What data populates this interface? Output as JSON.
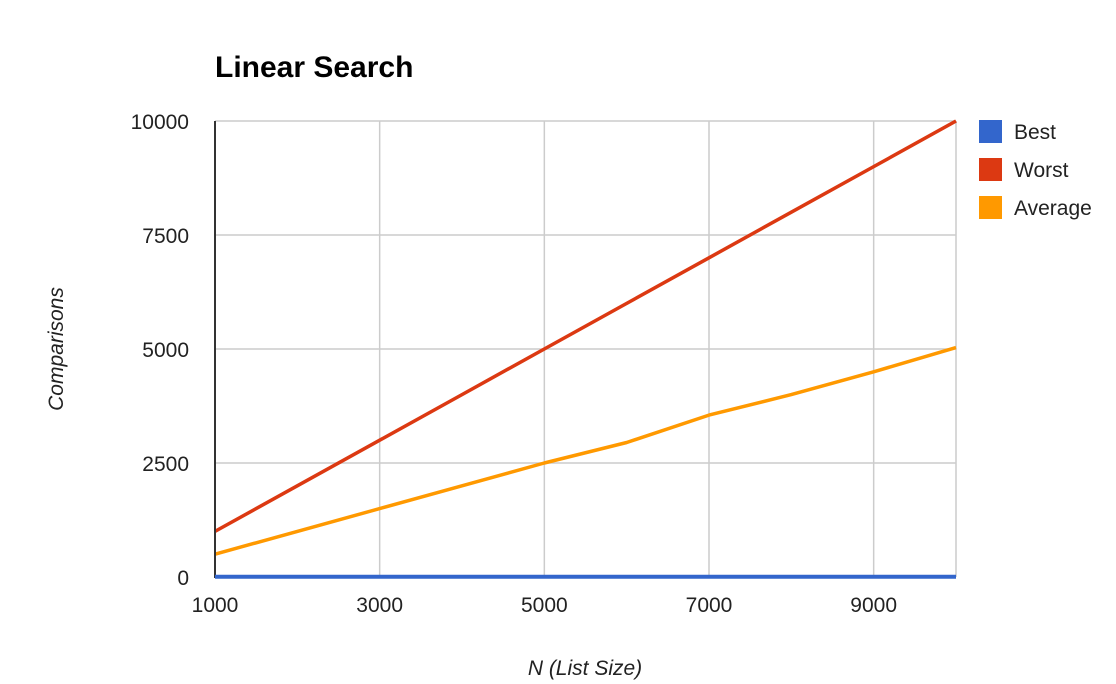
{
  "chart_data": {
    "type": "line",
    "title": "Linear Search",
    "xlabel": "N (List Size)",
    "ylabel": "Comparisons",
    "x": [
      1000,
      2000,
      3000,
      4000,
      5000,
      6000,
      7000,
      8000,
      9000,
      10000
    ],
    "xlim": [
      1000,
      10000
    ],
    "ylim": [
      0,
      10000
    ],
    "x_ticks": [
      1000,
      3000,
      5000,
      7000,
      9000
    ],
    "y_ticks": [
      0,
      2500,
      5000,
      7500,
      10000
    ],
    "grid": true,
    "legend_position": "right",
    "series": [
      {
        "name": "Best",
        "color": "#3366cc",
        "values": [
          1,
          1,
          1,
          1,
          1,
          1,
          1,
          1,
          1,
          1
        ]
      },
      {
        "name": "Worst",
        "color": "#dc3912",
        "values": [
          1000,
          2000,
          3000,
          4000,
          5000,
          6000,
          7000,
          8000,
          9000,
          10000
        ]
      },
      {
        "name": "Average",
        "color": "#ff9900",
        "values": [
          500,
          1000,
          1500,
          2000,
          2500,
          2950,
          3550,
          4000,
          4500,
          5030
        ]
      }
    ]
  }
}
